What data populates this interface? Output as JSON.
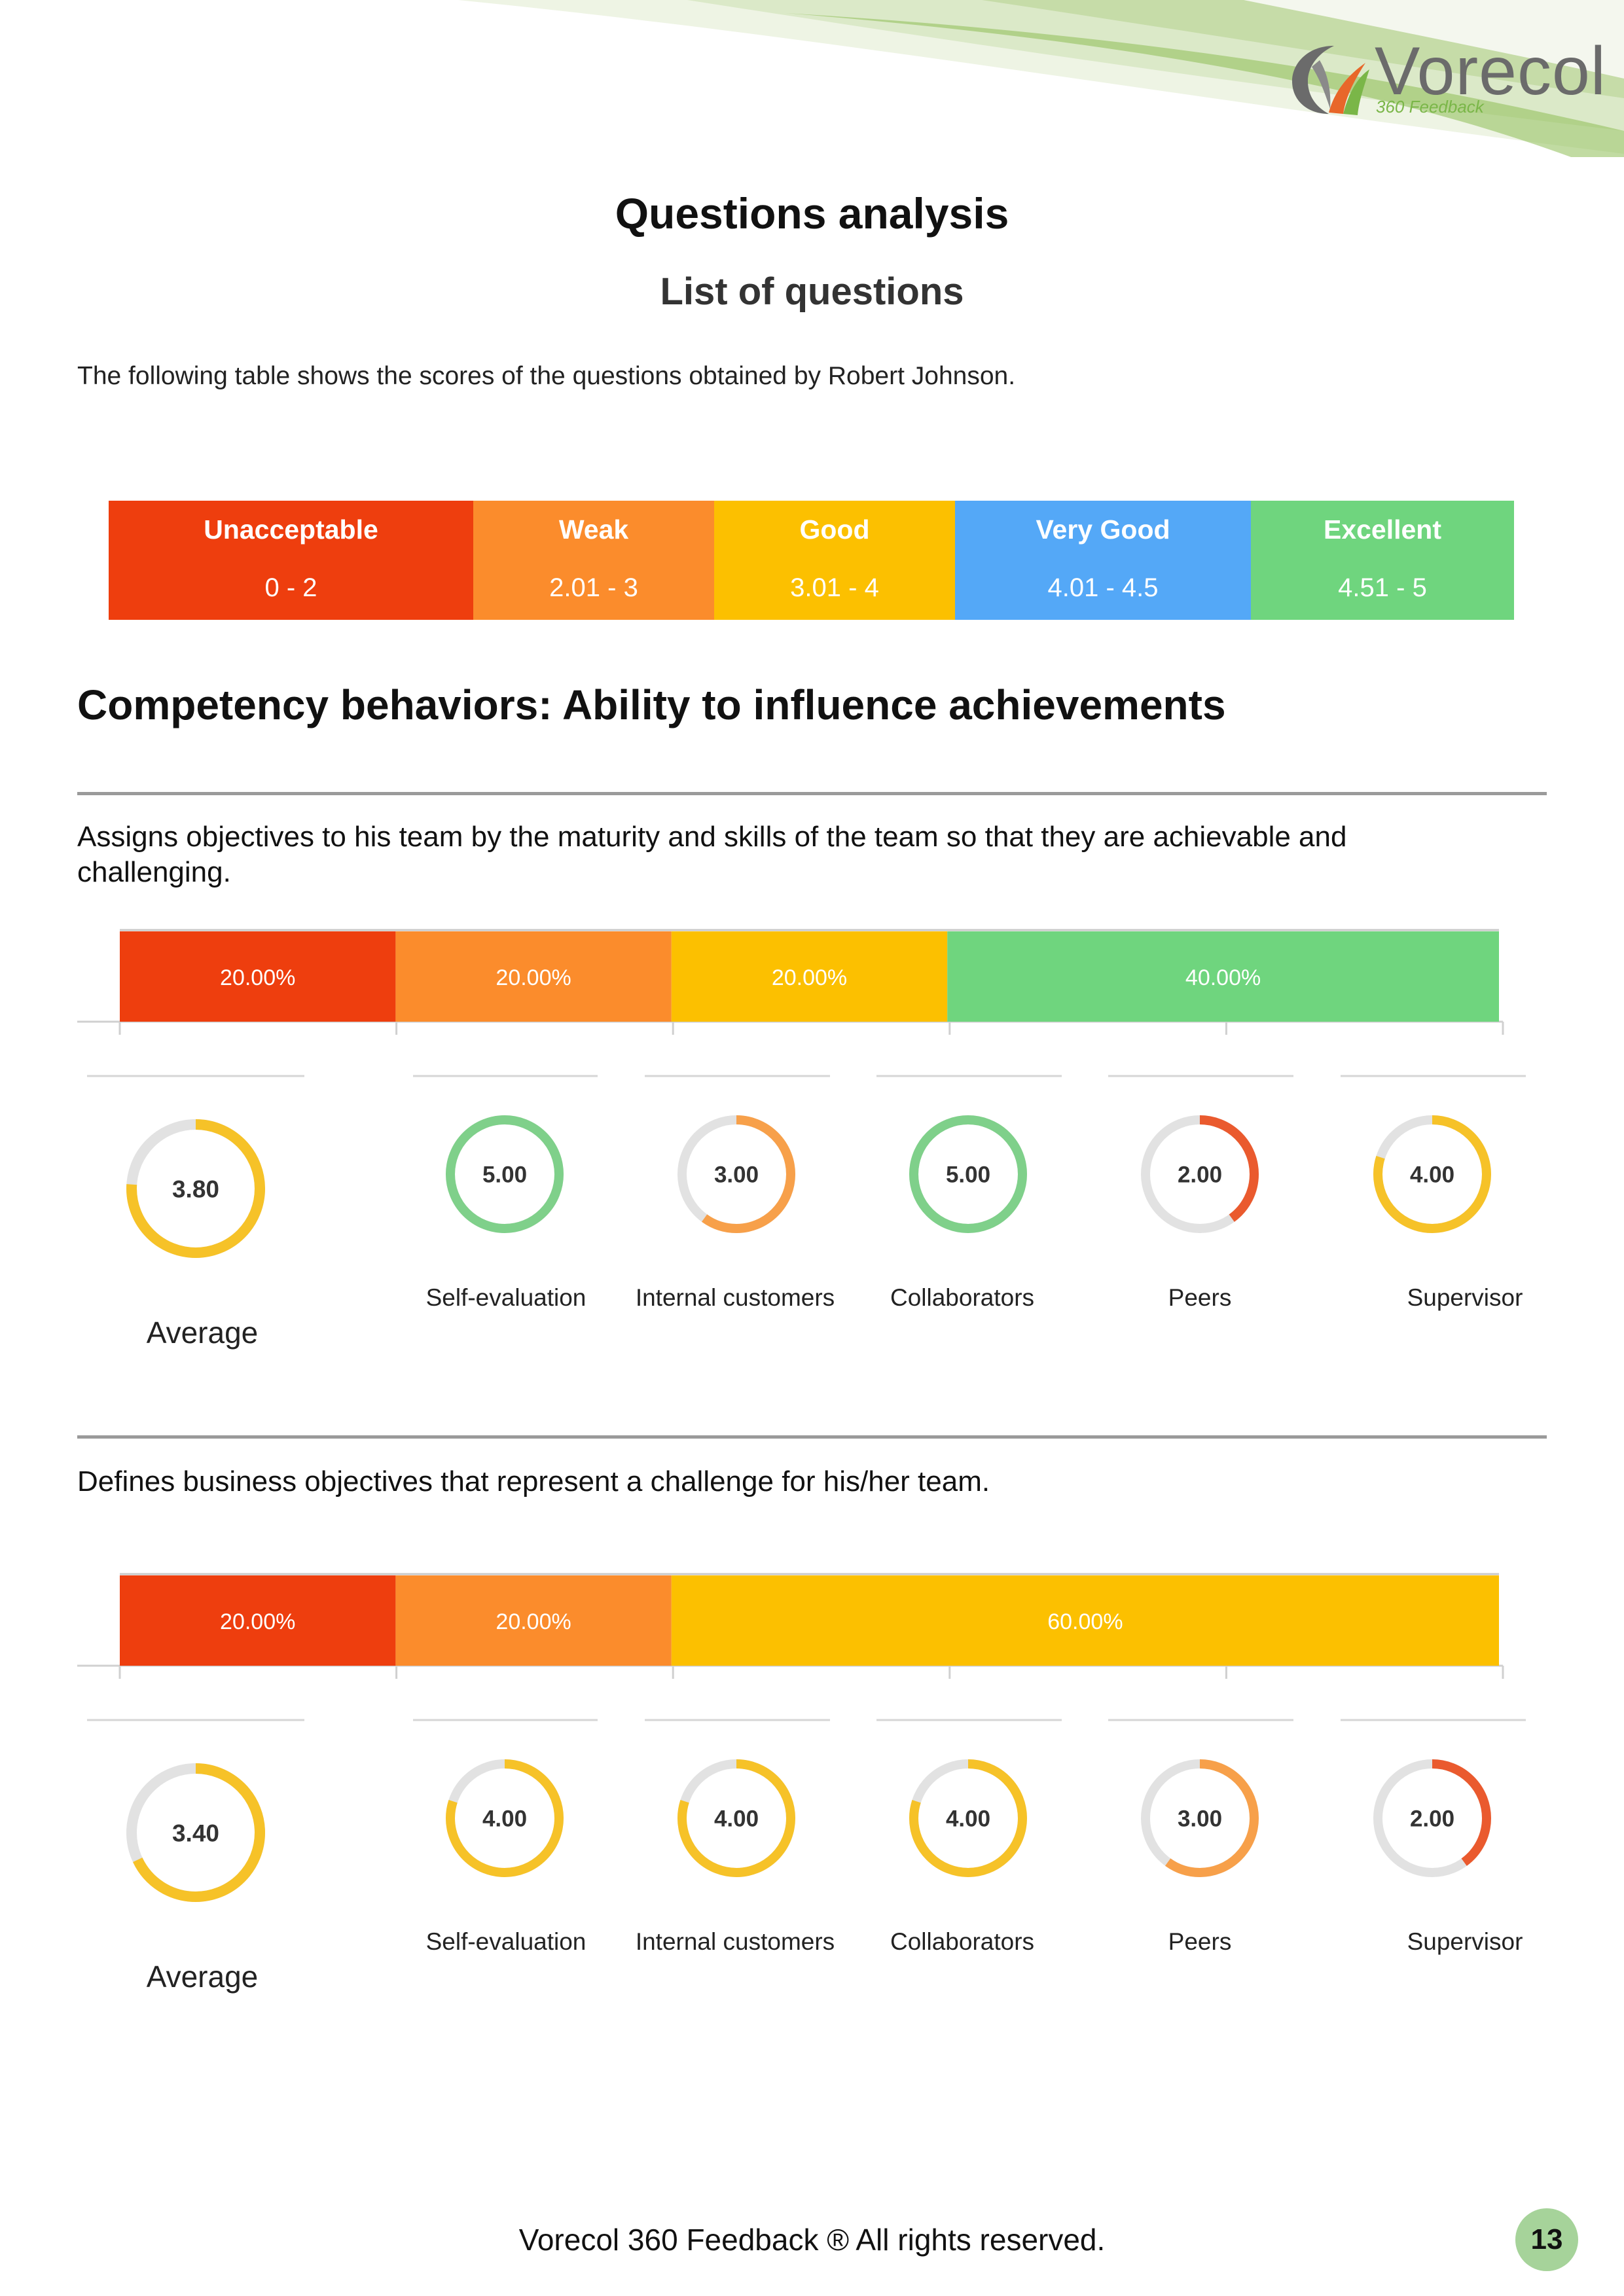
{
  "brand": {
    "logo_text": "Vorecol",
    "logo_sub": "360 Feedback"
  },
  "page": {
    "title": "Questions analysis",
    "subtitle": "List of questions",
    "intro": "The following table shows the scores of the questions obtained by Robert Johnson.",
    "competency_title": "Competency behaviors: Ability to influence achievements",
    "footer": "Vorecol 360 Feedback ® All rights reserved.",
    "page_number": "13"
  },
  "legend": [
    {
      "label": "Unacceptable",
      "range": "0  -  2",
      "color": "#ee3e0e"
    },
    {
      "label": "Weak",
      "range": "2.01  -  3",
      "color": "#fb8c2c"
    },
    {
      "label": "Good",
      "range": "3.01  -  4",
      "color": "#fcc000"
    },
    {
      "label": "Very Good",
      "range": "4.01  -  4.5",
      "color": "#54a8f7"
    },
    {
      "label": "Excellent",
      "range": "4.51  -  5",
      "color": "#6fd57e"
    }
  ],
  "questions": [
    {
      "text": "Assigns objectives to his team by the maturity and skills of the team so that they are achievable and challenging.",
      "distribution": [
        {
          "label": "20.00%",
          "value": 20,
          "color": "#ee3e0e"
        },
        {
          "label": "20.00%",
          "value": 20,
          "color": "#fb8c2c"
        },
        {
          "label": "20.00%",
          "value": 20,
          "color": "#fcc000"
        },
        {
          "label": "40.00%",
          "value": 40,
          "color": "#6fd57e"
        }
      ],
      "average": {
        "label": "Average",
        "score": "3.80",
        "value": 3.8,
        "color": "#f6c228"
      },
      "groups": [
        {
          "label": "Self-evaluation",
          "score": "5.00",
          "value": 5.0,
          "color": "#7fd08a"
        },
        {
          "label": "Internal customers",
          "score": "3.00",
          "value": 3.0,
          "color": "#f7a04a"
        },
        {
          "label": "Collaborators",
          "score": "5.00",
          "value": 5.0,
          "color": "#7fd08a"
        },
        {
          "label": "Peers",
          "score": "2.00",
          "value": 2.0,
          "color": "#ea5a2e"
        },
        {
          "label": "Supervisor",
          "score": "4.00",
          "value": 4.0,
          "color": "#f6c228"
        }
      ]
    },
    {
      "text": "Defines business objectives that represent a challenge for his/her team.",
      "distribution": [
        {
          "label": "20.00%",
          "value": 20,
          "color": "#ee3e0e"
        },
        {
          "label": "20.00%",
          "value": 20,
          "color": "#fb8c2c"
        },
        {
          "label": "60.00%",
          "value": 60,
          "color": "#fcc000"
        }
      ],
      "average": {
        "label": "Average",
        "score": "3.40",
        "value": 3.4,
        "color": "#f6c228"
      },
      "groups": [
        {
          "label": "Self-evaluation",
          "score": "4.00",
          "value": 4.0,
          "color": "#f6c228"
        },
        {
          "label": "Internal customers",
          "score": "4.00",
          "value": 4.0,
          "color": "#f6c228"
        },
        {
          "label": "Collaborators",
          "score": "4.00",
          "value": 4.0,
          "color": "#f6c228"
        },
        {
          "label": "Peers",
          "score": "3.00",
          "value": 3.0,
          "color": "#f7a04a"
        },
        {
          "label": "Supervisor",
          "score": "2.00",
          "value": 2.0,
          "color": "#ea5a2e"
        }
      ]
    }
  ]
}
